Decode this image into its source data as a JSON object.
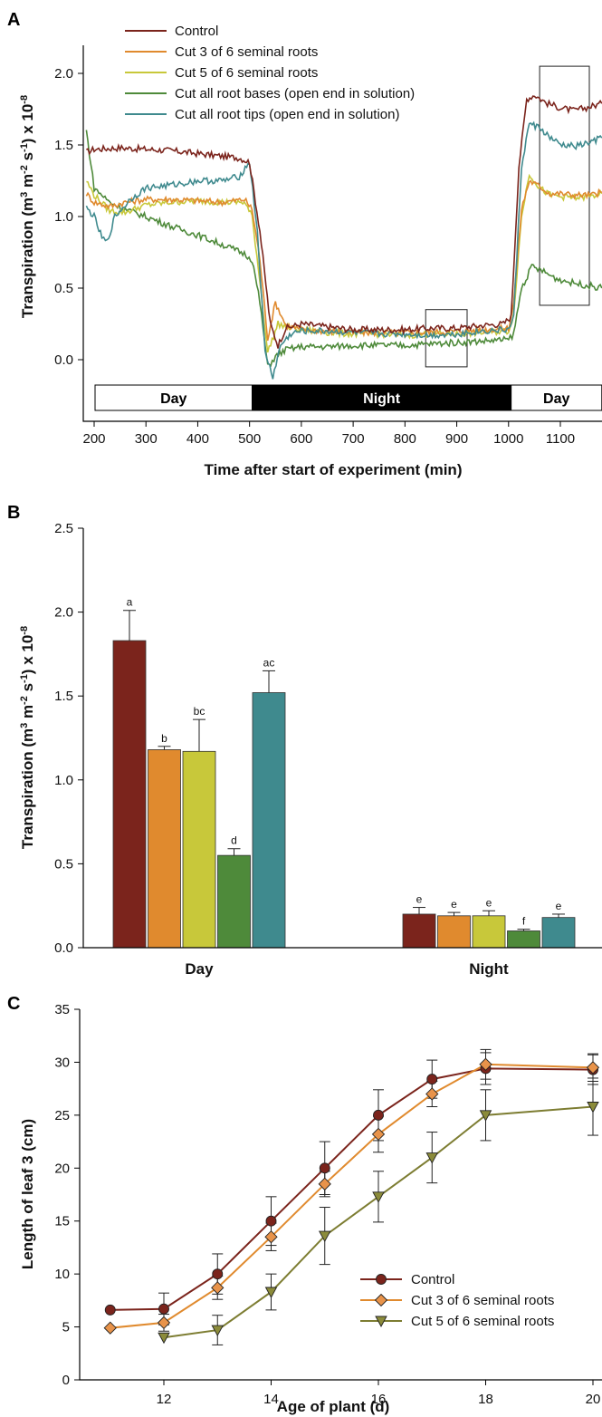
{
  "colors": {
    "control": "#7b241c",
    "cut3": "#e08a2e",
    "cut5": "#c8c83a",
    "bases": "#4e8a3a",
    "tips": "#3f8a8e"
  },
  "chart_data": [
    {
      "panel": "A",
      "type": "line",
      "xlabel": "Time after start of experiment (min)",
      "ylabel": "Transpiration (m3 m-2 s-1) x 10-8",
      "xlim": [
        185,
        1180
      ],
      "ylim": [
        -0.35,
        2.3
      ],
      "xticks": [
        200,
        300,
        400,
        500,
        600,
        700,
        800,
        900,
        1000,
        1100
      ],
      "yticks": [
        0.0,
        0.5,
        1.0,
        1.5,
        2.0
      ],
      "ytick_labels": [
        "0.0",
        "0.5",
        "1.0",
        "1.5",
        "2.0"
      ],
      "legend_position": "top-left",
      "periods": [
        {
          "label": "Day",
          "from": 200,
          "to": 505,
          "fill": "#ffffff",
          "text": "#000000"
        },
        {
          "label": "Night",
          "from": 505,
          "to": 1005,
          "fill": "#000000",
          "text": "#ffffff"
        },
        {
          "label": "Day",
          "from": 1005,
          "to": 1180,
          "fill": "#ffffff",
          "text": "#000000"
        }
      ],
      "highlight_boxes": [
        {
          "x": [
            840,
            920
          ],
          "y": [
            -0.05,
            0.35
          ]
        },
        {
          "x": [
            1060,
            1180
          ],
          "y": [
            0.38,
            2.05
          ]
        }
      ],
      "series": [
        {
          "name": "Control",
          "color_key": "control",
          "points": [
            [
              185,
              1.45
            ],
            [
              200,
              1.47
            ],
            [
              250,
              1.48
            ],
            [
              300,
              1.47
            ],
            [
              350,
              1.46
            ],
            [
              400,
              1.44
            ],
            [
              450,
              1.42
            ],
            [
              480,
              1.41
            ],
            [
              500,
              1.38
            ],
            [
              520,
              0.9
            ],
            [
              540,
              0.25
            ],
            [
              555,
              0.1
            ],
            [
              570,
              0.22
            ],
            [
              600,
              0.25
            ],
            [
              650,
              0.23
            ],
            [
              700,
              0.21
            ],
            [
              750,
              0.21
            ],
            [
              800,
              0.21
            ],
            [
              850,
              0.22
            ],
            [
              900,
              0.22
            ],
            [
              950,
              0.24
            ],
            [
              990,
              0.25
            ],
            [
              1005,
              0.3
            ],
            [
              1020,
              1.35
            ],
            [
              1035,
              1.82
            ],
            [
              1050,
              1.85
            ],
            [
              1075,
              1.79
            ],
            [
              1100,
              1.76
            ],
            [
              1125,
              1.74
            ],
            [
              1150,
              1.76
            ],
            [
              1180,
              1.79
            ]
          ]
        },
        {
          "name": "Cut 3 of 6 seminal roots",
          "color_key": "cut3",
          "points": [
            [
              185,
              1.16
            ],
            [
              200,
              1.1
            ],
            [
              230,
              1.07
            ],
            [
              260,
              1.1
            ],
            [
              300,
              1.12
            ],
            [
              350,
              1.12
            ],
            [
              400,
              1.11
            ],
            [
              450,
              1.1
            ],
            [
              490,
              1.12
            ],
            [
              505,
              1.05
            ],
            [
              520,
              0.7
            ],
            [
              535,
              0.15
            ],
            [
              550,
              0.4
            ],
            [
              570,
              0.24
            ],
            [
              600,
              0.21
            ],
            [
              650,
              0.2
            ],
            [
              700,
              0.19
            ],
            [
              750,
              0.19
            ],
            [
              800,
              0.19
            ],
            [
              850,
              0.19
            ],
            [
              900,
              0.2
            ],
            [
              950,
              0.21
            ],
            [
              1000,
              0.22
            ],
            [
              1010,
              0.4
            ],
            [
              1025,
              1.05
            ],
            [
              1040,
              1.25
            ],
            [
              1060,
              1.21
            ],
            [
              1080,
              1.16
            ],
            [
              1100,
              1.16
            ],
            [
              1130,
              1.15
            ],
            [
              1160,
              1.15
            ],
            [
              1180,
              1.17
            ]
          ]
        },
        {
          "name": "Cut 5 of 6 seminal roots",
          "color_key": "cut5",
          "points": [
            [
              185,
              1.25
            ],
            [
              200,
              1.15
            ],
            [
              230,
              1.04
            ],
            [
              260,
              1.03
            ],
            [
              300,
              1.08
            ],
            [
              350,
              1.1
            ],
            [
              400,
              1.11
            ],
            [
              450,
              1.1
            ],
            [
              490,
              1.1
            ],
            [
              505,
              1.0
            ],
            [
              520,
              0.55
            ],
            [
              535,
              0.05
            ],
            [
              555,
              0.25
            ],
            [
              580,
              0.22
            ],
            [
              650,
              0.19
            ],
            [
              700,
              0.18
            ],
            [
              750,
              0.18
            ],
            [
              800,
              0.17
            ],
            [
              850,
              0.18
            ],
            [
              900,
              0.18
            ],
            [
              950,
              0.19
            ],
            [
              1000,
              0.2
            ],
            [
              1010,
              0.32
            ],
            [
              1025,
              1.0
            ],
            [
              1040,
              1.3
            ],
            [
              1060,
              1.2
            ],
            [
              1080,
              1.15
            ],
            [
              1100,
              1.14
            ],
            [
              1130,
              1.13
            ],
            [
              1160,
              1.14
            ],
            [
              1180,
              1.16
            ]
          ]
        },
        {
          "name": "Cut all root bases (open end in solution)",
          "color_key": "bases",
          "points": [
            [
              185,
              1.6
            ],
            [
              200,
              1.2
            ],
            [
              230,
              1.1
            ],
            [
              260,
              1.05
            ],
            [
              300,
              1.0
            ],
            [
              350,
              0.93
            ],
            [
              400,
              0.87
            ],
            [
              450,
              0.8
            ],
            [
              490,
              0.74
            ],
            [
              505,
              0.7
            ],
            [
              520,
              0.4
            ],
            [
              535,
              -0.05
            ],
            [
              550,
              0.02
            ],
            [
              570,
              0.07
            ],
            [
              600,
              0.09
            ],
            [
              650,
              0.09
            ],
            [
              700,
              0.1
            ],
            [
              750,
              0.1
            ],
            [
              800,
              0.1
            ],
            [
              850,
              0.11
            ],
            [
              900,
              0.12
            ],
            [
              950,
              0.13
            ],
            [
              1000,
              0.14
            ],
            [
              1010,
              0.18
            ],
            [
              1025,
              0.5
            ],
            [
              1045,
              0.65
            ],
            [
              1065,
              0.62
            ],
            [
              1090,
              0.57
            ],
            [
              1120,
              0.54
            ],
            [
              1150,
              0.52
            ],
            [
              1180,
              0.5
            ]
          ]
        },
        {
          "name": "Cut all root tips (open end in solution)",
          "color_key": "tips",
          "points": [
            [
              185,
              1.06
            ],
            [
              200,
              1.0
            ],
            [
              215,
              0.85
            ],
            [
              225,
              0.82
            ],
            [
              240,
              1.0
            ],
            [
              270,
              1.12
            ],
            [
              300,
              1.2
            ],
            [
              350,
              1.22
            ],
            [
              400,
              1.25
            ],
            [
              450,
              1.25
            ],
            [
              480,
              1.28
            ],
            [
              500,
              1.38
            ],
            [
              515,
              0.9
            ],
            [
              530,
              0.05
            ],
            [
              545,
              -0.12
            ],
            [
              560,
              0.1
            ],
            [
              580,
              0.18
            ],
            [
              600,
              0.2
            ],
            [
              650,
              0.2
            ],
            [
              700,
              0.19
            ],
            [
              750,
              0.18
            ],
            [
              800,
              0.18
            ],
            [
              850,
              0.17
            ],
            [
              900,
              0.18
            ],
            [
              950,
              0.2
            ],
            [
              1000,
              0.21
            ],
            [
              1010,
              0.3
            ],
            [
              1025,
              1.35
            ],
            [
              1040,
              1.65
            ],
            [
              1060,
              1.62
            ],
            [
              1080,
              1.55
            ],
            [
              1100,
              1.5
            ],
            [
              1130,
              1.49
            ],
            [
              1160,
              1.52
            ],
            [
              1180,
              1.55
            ]
          ]
        }
      ]
    },
    {
      "panel": "B",
      "type": "bar",
      "xlabel": "",
      "ylabel": "Transpiration (m3 m-2 s-1) x 10-8",
      "categories": [
        "Day",
        "Night"
      ],
      "ylim": [
        0.0,
        2.5
      ],
      "yticks": [
        0.0,
        0.5,
        1.0,
        1.5,
        2.0,
        2.5
      ],
      "ytick_labels": [
        "0.0",
        "0.5",
        "1.0",
        "1.5",
        "2.0",
        "2.5"
      ],
      "series": [
        {
          "color_key": "control",
          "values": [
            1.83,
            0.2
          ],
          "errors": [
            0.18,
            0.04
          ],
          "letters": [
            "a",
            "e"
          ]
        },
        {
          "color_key": "cut3",
          "values": [
            1.18,
            0.19
          ],
          "errors": [
            0.02,
            0.02
          ],
          "letters": [
            "b",
            "e"
          ]
        },
        {
          "color_key": "cut5",
          "values": [
            1.17,
            0.19
          ],
          "errors": [
            0.19,
            0.03
          ],
          "letters": [
            "bc",
            "e"
          ]
        },
        {
          "color_key": "bases",
          "values": [
            0.55,
            0.1
          ],
          "errors": [
            0.04,
            0.01
          ],
          "letters": [
            "d",
            "f"
          ]
        },
        {
          "color_key": "tips",
          "values": [
            1.52,
            0.18
          ],
          "errors": [
            0.13,
            0.02
          ],
          "letters": [
            "ac",
            "e"
          ]
        }
      ]
    },
    {
      "panel": "C",
      "type": "line",
      "xlabel": "Age of plant (d)",
      "ylabel": "Length of leaf 3 (cm)",
      "xlim": [
        10.5,
        20.0
      ],
      "ylim": [
        0,
        35
      ],
      "xticks": [
        12,
        14,
        16,
        18,
        20
      ],
      "xtick_labels": [
        "12",
        "14",
        "16",
        "18",
        "20"
      ],
      "yticks": [
        0,
        5,
        10,
        15,
        20,
        25,
        30,
        35
      ],
      "ytick_labels": [
        "0",
        "5",
        "10",
        "15",
        "20",
        "25",
        "30",
        "35"
      ],
      "legend_position": "bottom-right",
      "series": [
        {
          "name": "Control",
          "color_key": "control",
          "marker": "circle",
          "x": [
            11,
            12,
            13,
            14,
            15,
            16,
            17,
            18,
            20
          ],
          "y": [
            6.6,
            6.7,
            10.0,
            15.0,
            20.0,
            25.0,
            28.4,
            29.4,
            29.3
          ],
          "err": [
            0.0,
            1.5,
            1.9,
            2.3,
            2.5,
            2.4,
            1.8,
            1.5,
            1.4
          ]
        },
        {
          "name": "Cut 3 of 6 seminal roots",
          "color_key": "cut3",
          "marker": "diamond",
          "x": [
            11,
            12,
            13,
            14,
            15,
            16,
            17,
            18,
            20
          ],
          "y": [
            4.9,
            5.4,
            8.7,
            13.5,
            18.5,
            23.2,
            27.0,
            29.8,
            29.5
          ],
          "err": [
            0.0,
            0.8,
            1.1,
            1.3,
            1.2,
            1.7,
            1.2,
            1.4,
            1.3
          ]
        },
        {
          "name": "Cut 5 of 6 seminal roots",
          "color_key": "cut5",
          "marker": "triangle-down",
          "x": [
            12,
            13,
            14,
            15,
            16,
            17,
            18,
            20
          ],
          "y": [
            4.0,
            4.7,
            8.3,
            13.6,
            17.3,
            21.0,
            25.0,
            25.8
          ],
          "err": [
            0.0,
            1.4,
            1.7,
            2.7,
            2.4,
            2.4,
            2.4,
            2.7
          ]
        }
      ]
    }
  ]
}
